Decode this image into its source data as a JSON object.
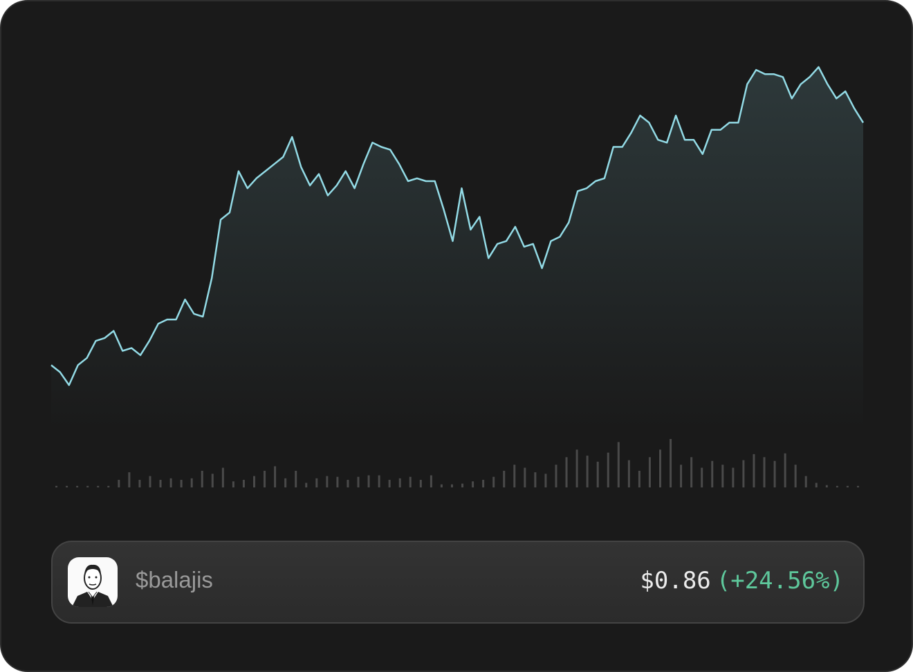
{
  "chart_data": [
    {
      "type": "line",
      "color": "#93dbe6",
      "values": [
        0.69,
        0.685,
        0.676,
        0.69,
        0.695,
        0.707,
        0.709,
        0.714,
        0.7,
        0.702,
        0.697,
        0.707,
        0.719,
        0.722,
        0.722,
        0.736,
        0.726,
        0.724,
        0.751,
        0.792,
        0.797,
        0.826,
        0.814,
        0.821,
        0.826,
        0.831,
        0.836,
        0.85,
        0.829,
        0.816,
        0.824,
        0.809,
        0.816,
        0.826,
        0.814,
        0.831,
        0.846,
        0.843,
        0.841,
        0.831,
        0.819,
        0.821,
        0.819,
        0.819,
        0.799,
        0.777,
        0.814,
        0.785,
        0.794,
        0.765,
        0.775,
        0.777,
        0.787,
        0.773,
        0.775,
        0.758,
        0.777,
        0.78,
        0.79,
        0.812,
        0.814,
        0.819,
        0.821,
        0.843,
        0.843,
        0.853,
        0.865,
        0.86,
        0.848,
        0.846,
        0.865,
        0.848,
        0.848,
        0.838,
        0.855,
        0.855,
        0.86,
        0.86,
        0.887,
        0.897,
        0.894,
        0.894,
        0.892,
        0.877,
        0.887,
        0.892,
        0.899,
        0.887,
        0.877,
        0.882,
        0.87,
        0.86
      ]
    },
    {
      "type": "bar",
      "color": "#4a4a4a",
      "values": [
        2,
        2,
        2,
        2,
        2,
        2,
        10,
        20,
        10,
        15,
        10,
        12,
        10,
        12,
        22,
        18,
        26,
        8,
        10,
        15,
        22,
        28,
        12,
        22,
        6,
        12,
        15,
        14,
        10,
        14,
        16,
        16,
        10,
        12,
        14,
        10,
        16,
        4,
        4,
        5,
        8,
        10,
        14,
        22,
        30,
        26,
        20,
        18,
        30,
        40,
        50,
        42,
        34,
        46,
        60,
        36,
        22,
        40,
        50,
        64,
        30,
        40,
        26,
        35,
        30,
        26,
        36,
        44,
        40,
        35,
        45,
        30,
        15,
        6,
        3,
        2,
        2,
        2
      ]
    }
  ],
  "token": {
    "symbol": "$balajis",
    "price": "$0.86",
    "change": "(+24.56%)"
  }
}
